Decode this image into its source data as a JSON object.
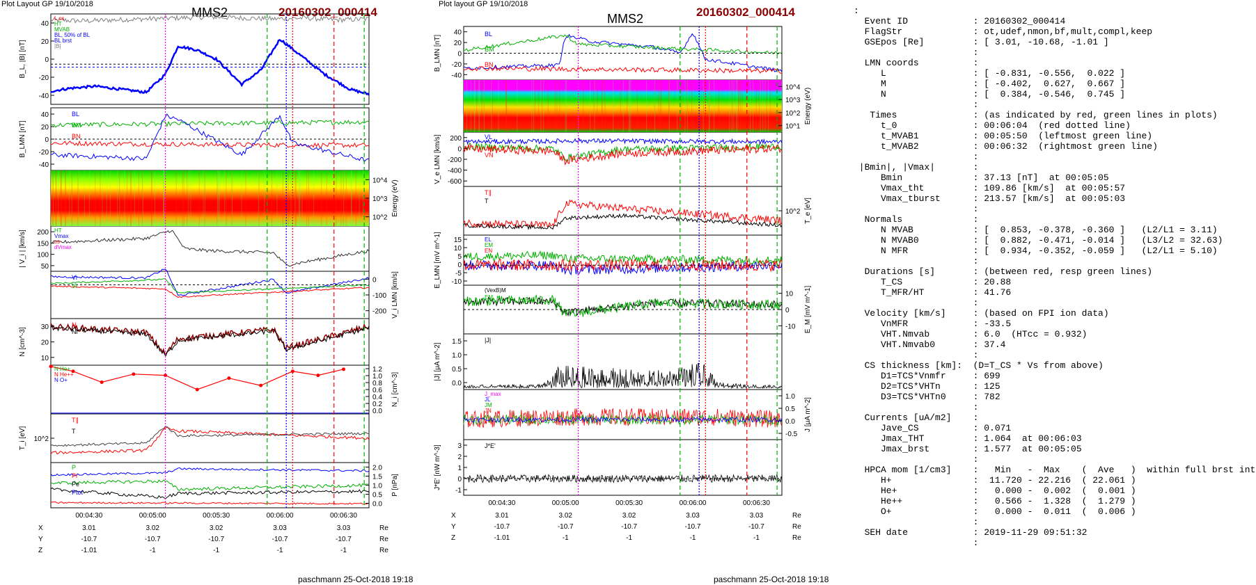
{
  "header": {
    "layout_left": "Plot Layout GP 19/10/2018",
    "layout_mid": "Plot layout GP 19/10/2018",
    "spacecraft": "MMS2",
    "event_id": "20160302_000414"
  },
  "footer": {
    "left": "paschmann 25-Oct-2018 19:18",
    "mid": "paschmann 25-Oct-2018 19:18"
  },
  "time_axis": {
    "ticks": [
      "00:04:30",
      "00:05:00",
      "00:05:30",
      "00:06:00",
      "00:06:30"
    ],
    "pos": {
      "labels": [
        "X",
        "Y",
        "Z"
      ],
      "left_values": [
        [
          "3.01",
          "3.02",
          "3.02",
          "3.03",
          "3.03"
        ],
        [
          "-10.7",
          "-10.7",
          "-10.7",
          "-10.7",
          "-10.7"
        ],
        [
          "-1.01",
          "-1",
          "-1",
          "-1",
          "-1"
        ]
      ],
      "mid_values": [
        [
          "3.01",
          "3.02",
          "3.02",
          "3.03",
          "3.03"
        ],
        [
          "-10.7",
          "-10.7",
          "-10.7",
          "-10.7",
          "-10.7"
        ],
        [
          "-1.01",
          "-1",
          "-1",
          "-1",
          "-1"
        ]
      ],
      "unit": "Re"
    }
  },
  "colors": {
    "red": "#ff0000",
    "green": "#00b000",
    "blue": "#0000ff",
    "magenta": "#ff00ff",
    "black": "#000000",
    "gray": "#808080",
    "darkred": "#8b0000"
  },
  "chart_data": [
    {
      "type": "line",
      "panel": "left-1",
      "ylabel": "B_L, |B| [nT]",
      "ylim": [
        -40,
        50
      ],
      "yticks": [
        "40",
        "20",
        "0",
        "-20",
        "-40"
      ],
      "legend": [
        "L cs",
        "HT",
        "MVAB",
        "BL, 50% of BL",
        "BL brst",
        "|B|"
      ],
      "series": [
        {
          "name": "|B|",
          "x": [
            0,
            0.1,
            0.2,
            0.3,
            0.4,
            0.5,
            0.6,
            0.7,
            0.8,
            0.9,
            1.0
          ],
          "values": [
            44,
            43,
            44,
            45,
            46,
            47,
            46,
            45,
            46,
            44,
            45
          ]
        },
        {
          "name": "BL brst",
          "x": [
            0,
            0.06,
            0.14,
            0.22,
            0.3,
            0.36,
            0.4,
            0.46,
            0.52,
            0.6,
            0.66,
            0.72,
            0.78,
            0.86,
            0.94,
            1.0
          ],
          "values": [
            -27,
            -24,
            -22,
            -25,
            -28,
            -10,
            18,
            14,
            5,
            -20,
            -6,
            25,
            10,
            -10,
            -25,
            -30
          ]
        }
      ]
    },
    {
      "type": "line",
      "panel": "left-2",
      "ylabel": "B_LMN [nT]",
      "yticks": [
        "40",
        "20",
        "0",
        "-20",
        "-40"
      ],
      "legend": [
        "BL",
        "BM",
        "BN"
      ],
      "series": [
        {
          "name": "BL",
          "x": [
            0,
            0.3,
            0.4,
            0.6,
            0.72,
            1.0
          ],
          "values": [
            -20,
            -25,
            30,
            -20,
            30,
            -28
          ]
        },
        {
          "name": "BM",
          "x": [
            0,
            0.5,
            1.0
          ],
          "values": [
            18,
            20,
            22
          ]
        },
        {
          "name": "BN",
          "x": [
            0,
            0.5,
            1.0
          ],
          "values": [
            -5,
            -7,
            -8
          ]
        }
      ]
    },
    {
      "type": "heatmap",
      "panel": "left-3",
      "ylabel": "Energy (eV)",
      "yticks": [
        "10^4",
        "10^3",
        "10^2"
      ]
    },
    {
      "type": "line",
      "panel": "left-4",
      "ylabel": "| V_i | [km/s]",
      "ylim": [
        0,
        220
      ],
      "yticks": [
        "200",
        "150",
        "100",
        "50"
      ],
      "legend": [
        "HT",
        "Vmax",
        "cs",
        "dVmax"
      ],
      "series": [
        {
          "name": "|Vi|",
          "x": [
            0,
            0.3,
            0.38,
            0.42,
            0.5,
            0.7,
            0.74,
            1.0
          ],
          "values": [
            140,
            160,
            200,
            110,
            100,
            90,
            30,
            100
          ]
        }
      ]
    },
    {
      "type": "line",
      "panel": "left-5",
      "ylabel": "V_i LMN [km/s]",
      "yticks": [
        "0",
        "-100",
        "-200"
      ],
      "legend": [
        "Vi",
        "Vi"
      ]
    },
    {
      "type": "line",
      "panel": "left-6",
      "ylabel": "N [cm^-3]",
      "ylim": [
        5,
        35
      ],
      "yticks": [
        "30",
        "20",
        "10"
      ],
      "legend": [
        "N",
        "Ni"
      ]
    },
    {
      "type": "line",
      "panel": "left-7",
      "ylabel": "N_i [cm^-3]",
      "ylim": [
        0,
        1.2
      ],
      "yticks": [
        "1.2",
        "1.0",
        "0.8",
        "0.6",
        "0.4",
        "0.2",
        "0.0"
      ],
      "legend": [
        "N He+",
        "N He++",
        "N O+"
      ],
      "series": [
        {
          "name": "N He++",
          "x": [
            0,
            0.07,
            0.16,
            0.26,
            0.36,
            0.46,
            0.56,
            0.66,
            0.76,
            0.84,
            0.92
          ],
          "values": [
            1.17,
            1.05,
            0.78,
            0.98,
            0.95,
            0.6,
            0.88,
            0.7,
            1.05,
            0.95,
            1.1
          ]
        }
      ]
    },
    {
      "type": "line",
      "panel": "left-8",
      "ylabel": "T_i [eV]",
      "yticks": [
        "10^2"
      ],
      "legend": [
        "T∥",
        "T"
      ]
    },
    {
      "type": "line",
      "panel": "left-9",
      "ylabel": "P [nPa]",
      "ylim": [
        0,
        2.2
      ],
      "yticks": [
        "2.0",
        "1.5",
        "1.0",
        "0.5",
        "0.0"
      ],
      "legend": [
        "P",
        "Pi",
        "Pe",
        "Ptot"
      ]
    },
    {
      "type": "line",
      "panel": "mid-1",
      "ylabel": "B_LMN [nT]",
      "yticks": [
        "40",
        "20",
        "0",
        "-20",
        "-40"
      ],
      "legend": [
        "BL",
        "BM",
        "BN"
      ]
    },
    {
      "type": "heatmap",
      "panel": "mid-2",
      "ylabel": "Energy (eV)",
      "yticks": [
        "10^4",
        "10^3",
        "10^2",
        "10^1"
      ]
    },
    {
      "type": "line",
      "panel": "mid-3",
      "ylabel": "V_e LMN [km/s]",
      "yticks": [
        "200",
        "0",
        "-200",
        "-400",
        "-600"
      ],
      "legend": [
        "VL",
        "VN"
      ]
    },
    {
      "type": "line",
      "panel": "mid-4",
      "ylabel": "T_e [eV]",
      "yticks": [
        "10^2"
      ],
      "legend": [
        "T∥",
        "T"
      ]
    },
    {
      "type": "line",
      "panel": "mid-5",
      "ylabel": "E_LMN [mV m^-1]",
      "yticks": [
        "15",
        "10",
        "5",
        "0",
        "-5",
        "-10"
      ],
      "legend": [
        "EL",
        "EM",
        "EN"
      ]
    },
    {
      "type": "line",
      "panel": "mid-6",
      "ylabel": "E_M [mV m^-1]",
      "yticks": [
        "10",
        "0",
        "-10"
      ],
      "legend": [
        "(VexB)M",
        "EM"
      ]
    },
    {
      "type": "line",
      "panel": "mid-7",
      "ylabel": "|J| [μA m^-2]",
      "ylim": [
        0,
        1.5
      ],
      "yticks": [
        "1.5",
        "1.0",
        "0.5",
        "0.0"
      ],
      "legend": [
        "|J|"
      ]
    },
    {
      "type": "line",
      "panel": "mid-8",
      "ylabel": "J [μA m^-2]",
      "yticks": [
        "1.0",
        "0.5",
        "0.0",
        "-0.5"
      ],
      "legend": [
        "J_max",
        "JL",
        "JM",
        "JN"
      ]
    },
    {
      "type": "line",
      "panel": "mid-9",
      "ylabel": "J*E' [nW m^-3]",
      "ylim": [
        -1.5,
        3.5
      ],
      "yticks": [
        "3",
        "2",
        "1",
        "0",
        "-1"
      ],
      "legend": [
        "J*E'"
      ]
    }
  ],
  "info_lines": [
    ":",
    "  Event ID            : 20160302_000414",
    "  FlagStr             : ot,udef,nmon,bf,mult,compl,keep",
    "  GSEpos [Re]         : [ 3.01, -10.68, -1.01 ]",
    "                      :",
    "  LMN coords          :",
    "     L                : [ -0.831, -0.556,  0.022 ]",
    "     M                : [ -0.402,  0.627,  0.667 ]",
    "     N                : [  0.384, -0.546,  0.745 ]",
    "                      :",
    "   Times              : (as indicated by red, green lines in plots)",
    "     t_0              : 00:06:04  (red dotted line)",
    "     t_MVAB1          : 00:05:50  (leftmost green line)",
    "     t_MVAB2          : 00:06:32  (rightmost green line)",
    "                      :",
    " |Bmin|, |Vmax|       :",
    "     Bmin             : 37.13 [nT]  at 00:05:05",
    "     Vmax_tht         : 109.86 [km/s]  at 00:05:57",
    "     Vmax_tburst      : 213.57 [km/s]  at 00:05:03",
    "                      :",
    "  Normals             :",
    "     N MVAB           : [  0.853, -0.378, -0.360 ]   (L2/L1 = 3.11)",
    "     N MVAB0          : [  0.882, -0.471, -0.014 ]   (L3/L2 = 32.63)",
    "     N MFR            : [  0.934, -0.352, -0.059 ]   (L2/L1 = 5.10)",
    "                      :",
    "  Durations [s]       : (between red, resp green lines)",
    "     T_CS             : 20.88",
    "     T_MFR/HT         : 41.76",
    "                      :",
    "  Velocity [km/s]     : (based on FPI ion data)",
    "     VnMFR            : -33.5",
    "     VHT.Nmvab        : 6.0  (HTcc = 0.932)",
    "     VHT.Nmvab0       : 37.4",
    "                      :",
    "  CS thickness [km]:  (D=T_CS * Vs from above)",
    "     D1=TCS*Vnmfr     : 699",
    "     D2=TCS*VHTn      : 125",
    "     D3=TCS*VHTn0     : 782",
    "                      :",
    "  Currents [uA/m2]    :",
    "     Jave_CS          : 0.071",
    "     Jmax_THT         : 1.064  at 00:06:03",
    "     Jmax_brst        : 1.577  at 00:05:05",
    "                      :",
    "  HPCA mom [1/cm3]    :   Min   -  Max    (  Ave   )  within full brst int",
    "     H+               :  11.720 - 22.216  ( 22.061 )",
    "     He+              :   0.000 -  0.002  (  0.001 )",
    "     He++             :   0.566 -  1.328  (  1.279 )",
    "     O+               :   0.000 -  0.011  (  0.006 )",
    "                      :",
    "  SEH date            : 2019-11-29 09:51:32",
    "                      :"
  ]
}
